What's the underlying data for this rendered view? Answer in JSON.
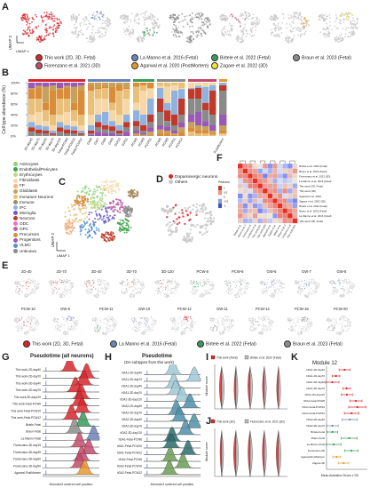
{
  "panels": {
    "A": "A",
    "B": "B",
    "C": "C",
    "D": "D",
    "E": "E",
    "F": "F",
    "G": "G",
    "H": "H",
    "I": "I",
    "J": "J",
    "K": "K"
  },
  "colors": {
    "this_work": "#d7262b",
    "la_manno": "#6c83b5",
    "birtele": "#3a9a5a",
    "braun": "#8c8c8c",
    "fiorenzano": "#c24a6a",
    "agarwal": "#e69a2b",
    "zagare": "#f2e23a"
  },
  "umap_axis": {
    "y": "UMAP 2",
    "x": "UMAP 1"
  },
  "legend_A": [
    {
      "label": "This work (2D, 3D, Fetal)",
      "color": "#d7262b"
    },
    {
      "label": "La Manno et al. 2016 (Fetal)",
      "color": "#6c83b5"
    },
    {
      "label": "Birtele et al. 2022 (Fetal)",
      "color": "#3a9a5a"
    },
    {
      "label": "Braun et al. 2023 (Fetal)",
      "color": "#8c8c8c"
    },
    {
      "label": "Fiorenzano et al. 2021 (3D)",
      "color": "#c24a6a"
    },
    {
      "label": "Agarwal et al. 2020 (PostMortem)",
      "color": "#e69a2b"
    },
    {
      "label": "Zagare et al. 2022 (3D)",
      "color": "#f2e23a"
    }
  ],
  "panel_B": {
    "ylabel": "Cell type abundance (%)",
    "yticks": [
      "100%",
      "80%",
      "60%",
      "40%",
      "20%",
      "0%"
    ],
    "groups": [
      {
        "color": "#d7262b",
        "labels": [
          "2D-day40",
          "2D-day70",
          "3D-day40",
          "3D-day70",
          "3D-day120",
          "Fetal-PCW6",
          "Fetal-PCW10",
          "Fetal-PCW12"
        ]
      },
      {
        "color": "#6c83b5",
        "labels": [
          "GW6",
          "GW7",
          "GW8",
          "GW9",
          "GW10",
          "GW11"
        ]
      },
      {
        "color": "#3a9a5a",
        "labels": [
          "PCW6",
          "PCW8",
          "PCW11"
        ]
      },
      {
        "color": "#8c8c8c",
        "labels": [
          "PCW5",
          "PCW8",
          "PCW11",
          "PCW14"
        ]
      },
      {
        "color": "#c24a6a",
        "labels": [
          "",
          "",
          "",
          ""
        ]
      },
      {
        "color": "#e69a2b",
        "labels": [
          "PostMortem"
        ]
      }
    ]
  },
  "cell_types": [
    {
      "label": "Astrocytes",
      "color": "#8fd175"
    },
    {
      "label": "Endothelial/Pericytes",
      "color": "#3fa34d"
    },
    {
      "label": "Erythrocytes",
      "color": "#b7d98a"
    },
    {
      "label": "Fibroblasts",
      "color": "#f6d7a7"
    },
    {
      "label": "FP",
      "color": "#f4b183"
    },
    {
      "label": "Glioblasts",
      "color": "#c6a15b"
    },
    {
      "label": "Immature Neurons",
      "color": "#e8c07a"
    },
    {
      "label": "Immune",
      "color": "#a88a5a"
    },
    {
      "label": "IPC",
      "color": "#8fb3de"
    },
    {
      "label": "Microglia",
      "color": "#6a5acd"
    },
    {
      "label": "Neurons",
      "color": "#c0392b"
    },
    {
      "label": "ODC",
      "color": "#e377c2"
    },
    {
      "label": "OPC",
      "color": "#b565a7"
    },
    {
      "label": "Precursors",
      "color": "#d98c3a"
    },
    {
      "label": "Progenitors",
      "color": "#9b59b6"
    },
    {
      "label": "VLMC",
      "color": "#5b8fd1"
    },
    {
      "label": "Unknown",
      "color": "#8a8a8a"
    }
  ],
  "legend_D": [
    {
      "label": "Dopaminergic neurons",
      "color": "#d7262b"
    },
    {
      "label": "Others",
      "color": "#c8c8c8"
    }
  ],
  "panel_E": {
    "row1": [
      "2D-40",
      "2D-70",
      "3D-40",
      "3D-70",
      "3D-120",
      "PCW-6",
      "PCW-8",
      "GW-6",
      "GW-7",
      "GW-8"
    ],
    "row2": [
      "PCW-10",
      "GW-9",
      "PCW-11",
      "GW-10",
      "PCW-12",
      "GW-11",
      "PCW-14",
      "PCW-18",
      "PCW-20"
    ],
    "legend": [
      {
        "label": "This work (2D, 3D, Fetal)",
        "color": "#d7262b"
      },
      {
        "label": "La Manno et al. 2016 (Fetal)",
        "color": "#6c83b5"
      },
      {
        "label": "Birtele et al. 2022 (Fetal)",
        "color": "#3a9a5a"
      },
      {
        "label": "Braun et al. 2023 (Fetal)",
        "color": "#8c8c8c"
      }
    ]
  },
  "panel_F": {
    "scale_title": "Pearson",
    "scale_ticks": [
      "1",
      "0.5",
      "0",
      "-0.5",
      "-1"
    ],
    "rows": [
      "Birtele et al. 2022 (Fetal)",
      "Braun et al. 2023 (Fetal)",
      "Fiorenzano et al. 2021 (3D)",
      "La Manno et al. 2016 (Fetal)",
      "This work (2D, Fetal)",
      "This work (3D)",
      "Agarwal et al. 2020",
      "Zagare et al. 2022 (3D)",
      "Birtele et al. 2022 (Fetal)",
      "Braun et al. 2023 (Fetal)",
      "La Manno et al. 2016 (Fetal)",
      "This work (3D, Fetal)"
    ]
  },
  "panel_G": {
    "title": "Pseudotime (all neurons)",
    "xlabel": "Monocle3 ordered cell position",
    "rows": [
      "This work-2D-day40",
      "This work-2D-day70",
      "This work-3D-day40",
      "This work-3D-day70",
      "This work-3D-day120",
      "This work-Fetal-PCW6",
      "This work-Fetal-PCW10",
      "This work-Fetal-PCW12",
      "Birtele-Fetal",
      "Braun-Fetal",
      "La Manno-Fetal",
      "Fiorenzano-3D-day15",
      "Fiorenzano-3D-day35",
      "Fiorenzano-3D-day60",
      "Fiorenzano-3D-day90",
      "Agarwal-PostMortem"
    ],
    "colors": [
      "#d7262b",
      "#d7262b",
      "#d7262b",
      "#d7262b",
      "#d7262b",
      "#d7262b",
      "#d7262b",
      "#d7262b",
      "#3a9a5a",
      "#8c8c8c",
      "#6c83b5",
      "#c24a6a",
      "#c24a6a",
      "#c24a6a",
      "#c24a6a",
      "#e69a2b"
    ]
  },
  "panel_H": {
    "title": "Pseudotime",
    "subtitle": "(DA subtypes from this work)",
    "xlabel": "Monocle3 ordered cell position",
    "rows": [
      "hDA1-2D-day40",
      "hDA1-2D-day70",
      "hDA1-3D-day40",
      "hDA1-3D-day70",
      "hDA1-3D-day120",
      "hDA2-2D-day40",
      "hDA2-2D-day70",
      "hDA2-3D-day40",
      "hDA2-3D-day70",
      "hDA2-3D-day120",
      "hDA1-Fetal-PCW6",
      "hDA1-Fetal-PCW10",
      "hDA1-Fetal-PCW12",
      "hDA2-Fetal-PCW6",
      "hDA2-Fetal-PCW10",
      "hDA2-Fetal-PCW12"
    ],
    "colors": [
      "#9fc9d6",
      "#9fc9d6",
      "#9fc9d6",
      "#9fc9d6",
      "#9fc9d6",
      "#4f8fa8",
      "#4f8fa8",
      "#4f8fa8",
      "#4f8fa8",
      "#4f8fa8",
      "#2d6b6b",
      "#2d6b6b",
      "#2d6b6b",
      "#6b9b58",
      "#6b9b58",
      "#6b9b58"
    ]
  },
  "panel_I": {
    "legend": [
      {
        "label": "This work (Fetal)",
        "color": "#d7262b"
      },
      {
        "label": "Birtele et al. 2022 (Fetal)",
        "color": "#bbbbbb"
      }
    ],
    "ylabel": "Module score"
  },
  "panel_J": {
    "legend": [
      {
        "label": "This work (3D)",
        "color": "#d7262b"
      },
      {
        "label": "Fiorenzano et al. 2021 (3D)",
        "color": "#bbbbbb"
      }
    ],
    "ylabel": "Module score"
  },
  "panel_K": {
    "title": "Module 12",
    "xlabel": "Mean Activation Score ± SD",
    "rows": [
      "hDA1-2D-day40",
      "hDA1-2D-day70",
      "hDA1-3D-day40",
      "hDA1-3D-day70",
      "hDA1-3D-day120",
      "hDA1-Fetal-PCW6",
      "hDA1-Fetal-PCW10",
      "hDA1-Fetal-PCW12",
      "hDA2-2D-day40",
      "hDA2-3D-day70",
      "Birtele-Fetal",
      "Braun-Fetal",
      "La Manno-Fetal",
      "Fiorenzano-3D",
      "Agarwal-PostMortem",
      "Zagare-3D"
    ]
  }
}
